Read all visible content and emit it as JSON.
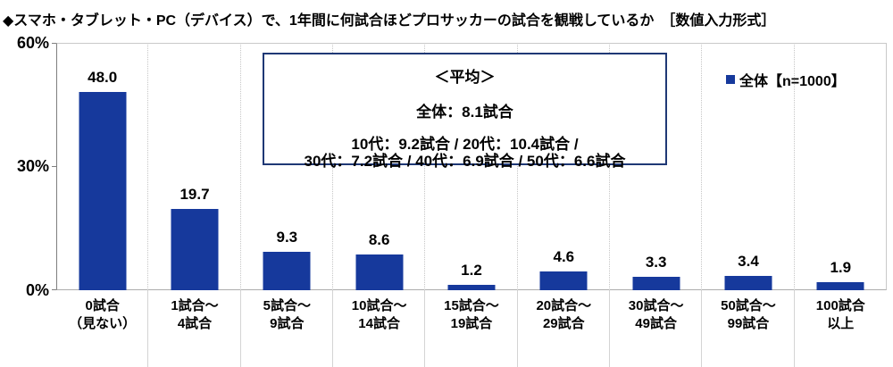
{
  "title": "◆スマホ・タブレット・PC（デバイス）で、1年間に何試合ほどプロサッカーの試合を観戦しているか　［数値入力形式］",
  "legend": {
    "label": "全体【n=1000】",
    "marker_color": "#16399C"
  },
  "y_axis": {
    "ticks": [
      "60%",
      "30%",
      "0%"
    ]
  },
  "average_box": {
    "heading": "＜平均＞",
    "overall": "全体：8.1試合",
    "by_age_line1": "10代：9.2試合 / 20代：10.4試合 /",
    "by_age_line2": "30代：7.2試合 / 40代：6.9試合 / 50代：6.6試合"
  },
  "colors": {
    "bar": "#16399C",
    "box_border": "#1F3875",
    "axis": "#7F7F7F",
    "grid": "#C6C6C6"
  },
  "chart_data": {
    "type": "bar",
    "title": "◆スマホ・タブレット・PC（デバイス）で、1年間に何試合ほどプロサッカーの試合を観戦しているか ［数値入力形式］",
    "categories": [
      "0試合（見ない）",
      "1試合～4試合",
      "5試合～9試合",
      "10試合～14試合",
      "15試合～19試合",
      "20試合～29試合",
      "30試合～49試合",
      "50試合～99試合",
      "100試合以上"
    ],
    "category_lines": [
      [
        "0試合",
        "（見ない）"
      ],
      [
        "1試合～",
        "4試合"
      ],
      [
        "5試合～",
        "9試合"
      ],
      [
        "10試合～",
        "14試合"
      ],
      [
        "15試合～",
        "19試合"
      ],
      [
        "20試合～",
        "29試合"
      ],
      [
        "30試合～",
        "49試合"
      ],
      [
        "50試合～",
        "99試合"
      ],
      [
        "100試合",
        "以上"
      ]
    ],
    "values": [
      48.0,
      19.7,
      9.3,
      8.6,
      1.2,
      4.6,
      3.3,
      3.4,
      1.9
    ],
    "value_labels": [
      "48.0",
      "19.7",
      "9.3",
      "8.6",
      "1.2",
      "4.6",
      "3.3",
      "3.4",
      "1.9"
    ],
    "series_name": "全体【n=1000】",
    "xlabel": "",
    "ylabel": "%",
    "ylim": [
      0,
      60
    ],
    "y_ticks": [
      0,
      30,
      60
    ],
    "grid": "vertical-dotted",
    "legend_position": "top-right",
    "averages": {
      "overall": 8.1,
      "10代": 9.2,
      "20代": 10.4,
      "30代": 7.2,
      "40代": 6.9,
      "50代": 6.6
    }
  }
}
